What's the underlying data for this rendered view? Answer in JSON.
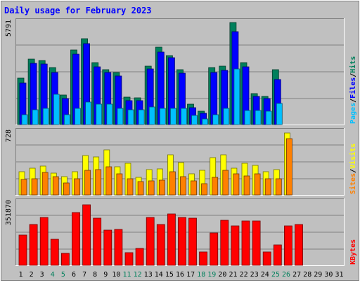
{
  "title": "Daily usage for February 2023",
  "colors": {
    "frame": "#c0c0c0",
    "plot_bg": "#c0c0c0",
    "title": "#0000ff",
    "hits": "#00805c",
    "files": "#0000ff",
    "pages": "#00c0ff",
    "visits": "#ffff00",
    "sites": "#ff8000",
    "kbytes": "#ff0000",
    "weekday_label": "#000000",
    "weekend_label": "#00805c"
  },
  "chart_data": {
    "type": "bar",
    "categories": [
      "1",
      "2",
      "3",
      "4",
      "5",
      "6",
      "7",
      "8",
      "9",
      "10",
      "11",
      "12",
      "13",
      "14",
      "15",
      "16",
      "17",
      "18",
      "19",
      "20",
      "21",
      "22",
      "23",
      "24",
      "25",
      "26",
      "27",
      "28",
      "29",
      "30",
      "31"
    ],
    "weekend_days": [
      4,
      5,
      11,
      12,
      18,
      19,
      25,
      26
    ],
    "panels": [
      {
        "id": "hits",
        "max_label": "5791",
        "ymax": 5791,
        "series": [
          {
            "name": "Hits",
            "values": [
              2600,
              3700,
              3600,
              3200,
              1650,
              4200,
              4850,
              3500,
              3100,
              2950,
              1550,
              1500,
              3300,
              4350,
              3900,
              3100,
              1150,
              750,
              3200,
              3300,
              5750,
              3500,
              1750,
              1600,
              3100,
              0,
              0,
              0,
              0,
              0,
              0
            ]
          },
          {
            "name": "Files",
            "values": [
              2350,
              3450,
              3400,
              2950,
              1450,
              3950,
              4550,
              3250,
              2950,
              2750,
              1350,
              1350,
              3150,
              4100,
              3750,
              2900,
              950,
              650,
              2950,
              3050,
              5250,
              3250,
              1600,
              1450,
              2550,
              0,
              0,
              0,
              0,
              0,
              0
            ]
          },
          {
            "name": "Pages",
            "values": [
              550,
              850,
              900,
              1700,
              550,
              900,
              1250,
              1150,
              1150,
              900,
              850,
              850,
              1000,
              900,
              900,
              900,
              500,
              300,
              550,
              900,
              3150,
              800,
              800,
              750,
              1200,
              0,
              0,
              0,
              0,
              0,
              0
            ]
          }
        ]
      },
      {
        "id": "visits",
        "max_label": "728",
        "ymax": 728,
        "series": [
          {
            "name": "Visits",
            "values": [
              270,
              310,
              330,
              250,
              210,
              270,
              450,
              440,
              520,
              320,
              360,
              200,
              290,
              300,
              460,
              370,
              240,
              280,
              430,
              460,
              310,
              360,
              340,
              270,
              290,
              710,
              0,
              0,
              0,
              0,
              0
            ]
          },
          {
            "name": "Sites",
            "values": [
              180,
              190,
              260,
              210,
              140,
              190,
              280,
              290,
              320,
              240,
              190,
              150,
              160,
              170,
              270,
              210,
              160,
              130,
              200,
              280,
              240,
              220,
              240,
              190,
              190,
              650,
              0,
              0,
              0,
              0,
              0
            ]
          }
        ]
      },
      {
        "id": "kbytes",
        "max_label": "351870",
        "ymax": 351870,
        "series": [
          {
            "name": "KBytes",
            "values": [
              170000,
              225000,
              265000,
              145000,
              65000,
              295000,
              335000,
              260000,
              195000,
              200000,
              70000,
              95000,
              265000,
              225000,
              285000,
              265000,
              260000,
              75000,
              180000,
              250000,
              220000,
              245000,
              245000,
              75000,
              115000,
              220000,
              225000,
              0,
              0,
              0,
              0
            ]
          }
        ]
      }
    ],
    "legend": {
      "hits_panel": [
        {
          "text": "Pages",
          "color_key": "pages"
        },
        {
          "text": "/",
          "color_key": "weekday_label"
        },
        {
          "text": "Files",
          "color_key": "files"
        },
        {
          "text": "/",
          "color_key": "weekday_label"
        },
        {
          "text": "Hits",
          "color_key": "hits"
        }
      ],
      "visits_panel": [
        {
          "text": "Sites",
          "color_key": "sites"
        },
        {
          "text": "/",
          "color_key": "weekday_label"
        },
        {
          "text": "Visits",
          "color_key": "visits"
        }
      ],
      "kbytes_panel": [
        {
          "text": "KBytes",
          "color_key": "kbytes"
        }
      ]
    }
  }
}
